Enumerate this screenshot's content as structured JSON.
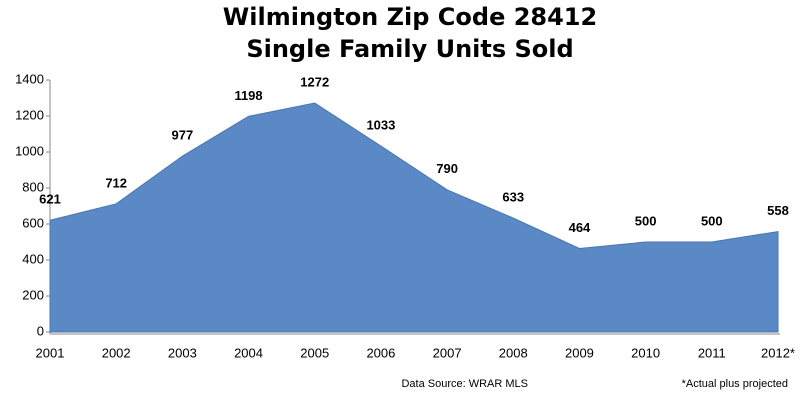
{
  "chart_data": {
    "type": "area",
    "title": "Wilmington Zip Code 28412",
    "subtitle": "Single Family Units Sold",
    "categories": [
      "2001",
      "2002",
      "2003",
      "2004",
      "2005",
      "2006",
      "2007",
      "2008",
      "2009",
      "2010",
      "2011",
      "2012*"
    ],
    "values": [
      621,
      712,
      977,
      1198,
      1272,
      1033,
      790,
      633,
      464,
      500,
      500,
      558
    ],
    "color": "#5a89c5",
    "ylim": [
      0,
      1400
    ],
    "yticks": [
      0,
      200,
      400,
      600,
      800,
      1000,
      1200,
      1400
    ],
    "grid": false,
    "notes": [
      "Data Source: WRAR MLS",
      "*Actual plus projected"
    ]
  }
}
